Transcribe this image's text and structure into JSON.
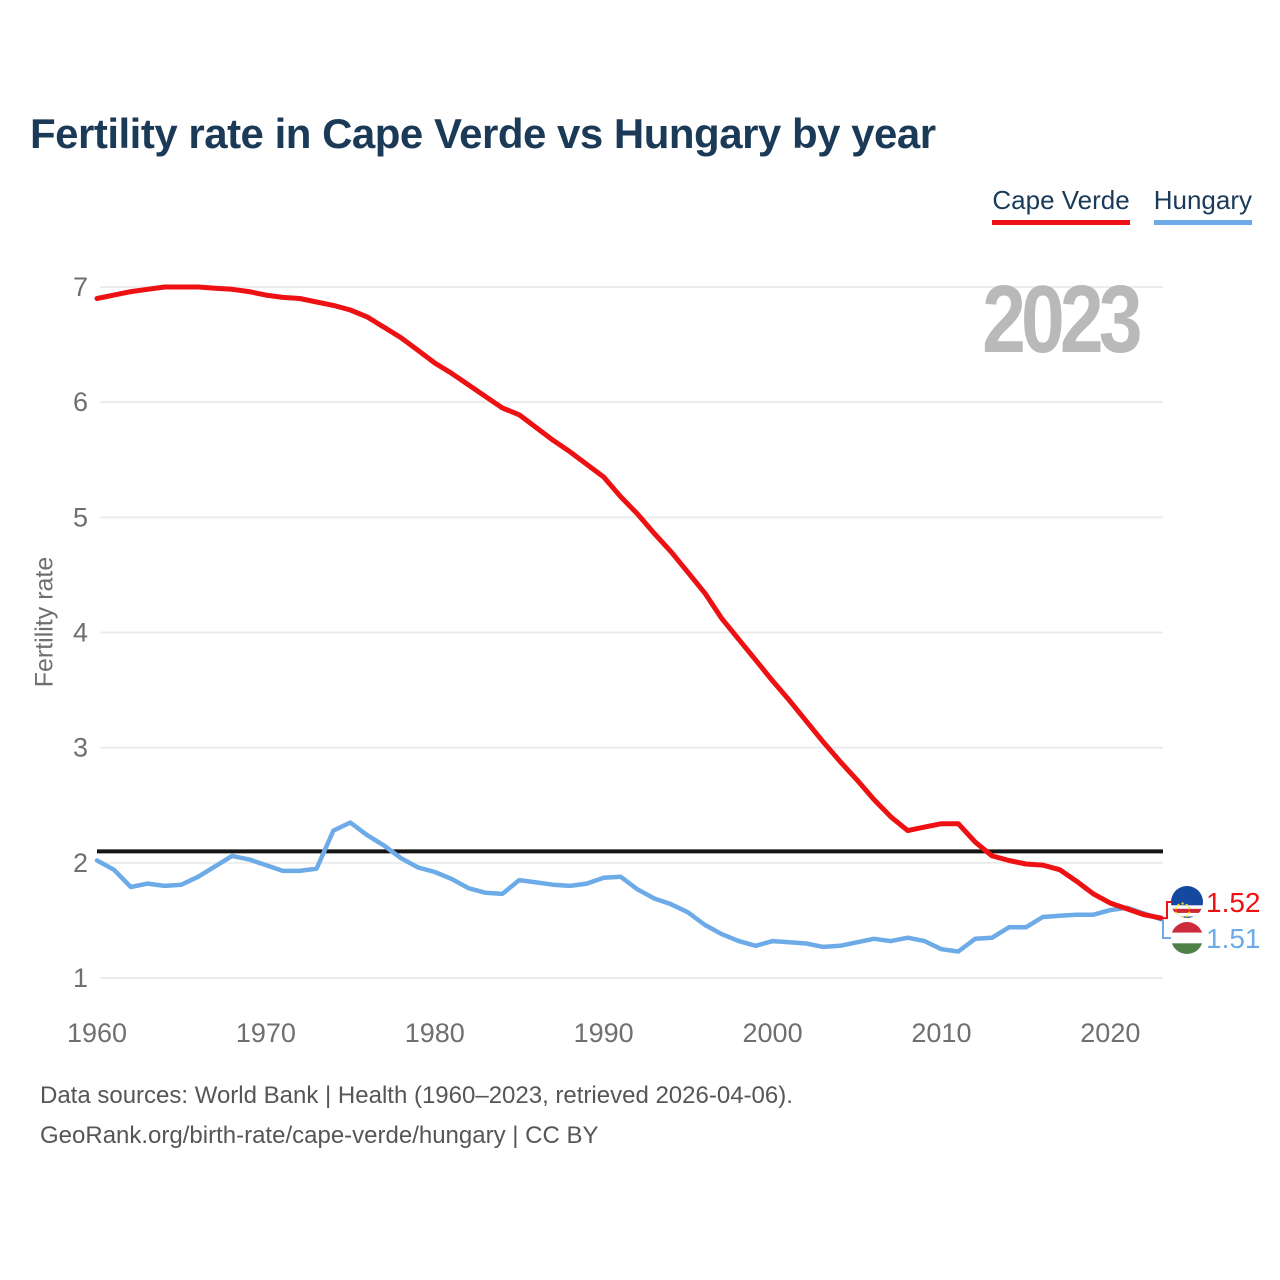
{
  "title": "Fertility rate in Cape Verde vs Hungary by year",
  "watermark": "2023",
  "footer": {
    "line1": "Data sources: World Bank | Health (1960–2023, retrieved 2026-04-06).",
    "line2": "GeoRank.org/birth-rate/cape-verde/hungary | CC BY"
  },
  "chart_data": {
    "type": "line",
    "title": "Fertility rate in Cape Verde vs Hungary by year",
    "xlabel": "",
    "ylabel": "Fertility rate",
    "grid": true,
    "legend_position": "top-right",
    "x_ticks": [
      "1960",
      "1970",
      "1980",
      "1990",
      "2000",
      "2010",
      "2020"
    ],
    "y_ticks": [
      "1",
      "2",
      "3",
      "4",
      "5",
      "6",
      "7"
    ],
    "x_range": [
      1960,
      2023
    ],
    "ylim": [
      1,
      7
    ],
    "reference_line": {
      "value": 2.1,
      "color": "#141414"
    },
    "series": [
      {
        "name": "Cape Verde",
        "color": "#ee1113",
        "flag": "cape-verde",
        "end_label": "1.52",
        "start_year": 1960,
        "values": [
          6.9,
          6.93,
          6.96,
          6.98,
          7.0,
          7.0,
          7.0,
          6.99,
          6.98,
          6.96,
          6.93,
          6.91,
          6.9,
          6.87,
          6.84,
          6.8,
          6.74,
          6.65,
          6.56,
          6.45,
          6.34,
          6.25,
          6.15,
          6.05,
          5.95,
          5.89,
          5.78,
          5.67,
          5.57,
          5.46,
          5.35,
          5.18,
          5.03,
          4.86,
          4.7,
          4.52,
          4.34,
          4.12,
          3.94,
          3.76,
          3.58,
          3.41,
          3.23,
          3.05,
          2.88,
          2.72,
          2.55,
          2.4,
          2.28,
          2.31,
          2.34,
          2.34,
          2.18,
          2.06,
          2.02,
          1.99,
          1.98,
          1.94,
          1.84,
          1.73,
          1.65,
          1.6,
          1.55,
          1.52
        ]
      },
      {
        "name": "Hungary",
        "color": "#6dabe8",
        "flag": "hungary",
        "end_label": "1.51",
        "start_year": 1960,
        "values": [
          2.02,
          1.94,
          1.79,
          1.82,
          1.8,
          1.81,
          1.88,
          1.97,
          2.06,
          2.03,
          1.98,
          1.93,
          1.93,
          1.95,
          2.28,
          2.35,
          2.24,
          2.15,
          2.04,
          1.96,
          1.92,
          1.86,
          1.78,
          1.74,
          1.73,
          1.85,
          1.83,
          1.81,
          1.8,
          1.82,
          1.87,
          1.88,
          1.77,
          1.69,
          1.64,
          1.57,
          1.46,
          1.38,
          1.32,
          1.28,
          1.32,
          1.31,
          1.3,
          1.27,
          1.28,
          1.31,
          1.34,
          1.32,
          1.35,
          1.32,
          1.25,
          1.23,
          1.34,
          1.35,
          1.44,
          1.44,
          1.53,
          1.54,
          1.55,
          1.55,
          1.59,
          1.61,
          1.56,
          1.51
        ]
      }
    ]
  }
}
